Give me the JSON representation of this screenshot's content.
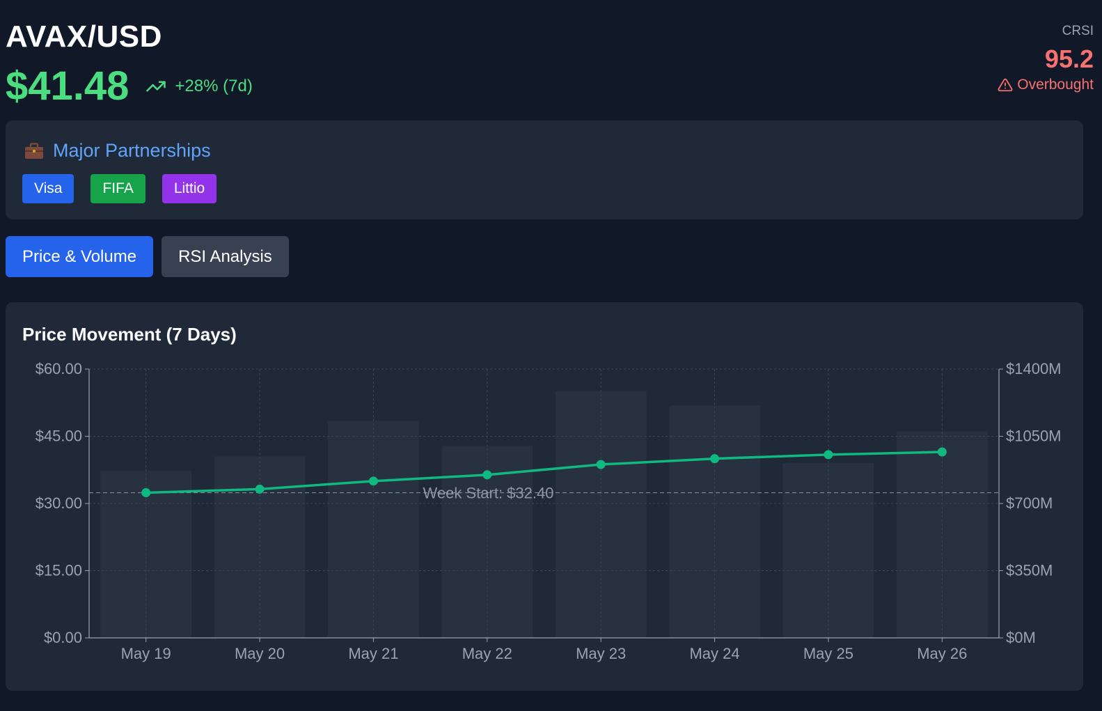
{
  "header": {
    "pair": "AVAX/USD",
    "price": "$41.48",
    "change": "+28% (7d)",
    "trend_icon": "trending-up-icon",
    "crsi_label": "CRSI",
    "crsi_value": "95.2",
    "crsi_status": "Overbought",
    "crsi_status_icon": "alert-triangle-icon"
  },
  "partnerships": {
    "title": "Major Partnerships",
    "icon": "briefcase-icon",
    "tags": [
      {
        "label": "Visa",
        "color": "#2563eb"
      },
      {
        "label": "FIFA",
        "color": "#16a34a"
      },
      {
        "label": "Littio",
        "color": "#9333ea"
      }
    ]
  },
  "tabs": [
    {
      "label": "Price & Volume",
      "active": true
    },
    {
      "label": "RSI Analysis",
      "active": false
    }
  ],
  "chart": {
    "title": "Price Movement (7 Days)",
    "colors": {
      "line": "#10b981",
      "bar": "#374151",
      "grid": "#4b5563",
      "axis": "#9ca3af"
    }
  },
  "chart_data": {
    "type": "line",
    "categories": [
      "May 19",
      "May 20",
      "May 21",
      "May 22",
      "May 23",
      "May 24",
      "May 25",
      "May 26"
    ],
    "series": [
      {
        "values": [
          32.4,
          33.2,
          35.0,
          36.4,
          38.7,
          40.0,
          40.9,
          41.5
        ]
      },
      {
        "values": [
          870,
          945,
          1130,
          1000,
          1285,
          1210,
          910,
          1075
        ]
      }
    ],
    "y_ticks": [
      "$0.00",
      "$15.00",
      "$30.00",
      "$45.00",
      "$60.00"
    ],
    "y_right_ticks": [
      "$0M",
      "$350M",
      "$700M",
      "$1050M",
      "$1400M"
    ],
    "ylim": [
      0,
      60
    ],
    "y_right_lim": [
      0,
      1400
    ],
    "reference_line": {
      "value": 32.4,
      "label": "Week Start: $32.40"
    },
    "grid": true
  }
}
